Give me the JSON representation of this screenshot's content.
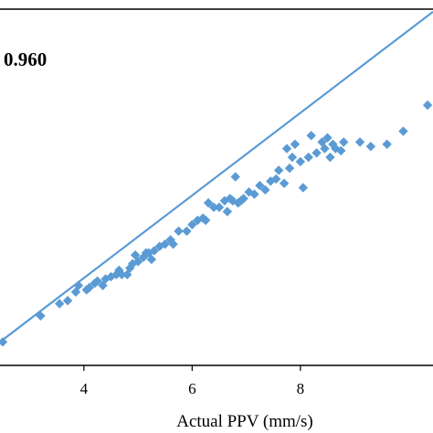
{
  "chart_data": {
    "type": "scatter",
    "title": "",
    "xlabel": "Actual PPV  (mm/s)",
    "ylabel": "",
    "annotation": "0.960",
    "x_ticks": [
      "4",
      "6",
      "8"
    ],
    "xlim": [
      2.45,
      10.45
    ],
    "ylim": [
      2.21,
      10.41
    ],
    "marker_color": "#5B9BD5",
    "line_color": "#5B9BD5",
    "trendline": {
      "x": [
        2.45,
        10.45
      ],
      "y": [
        2.75,
        10.35
      ]
    },
    "series": [
      {
        "points": [
          [
            2.5,
            2.75
          ],
          [
            3.2,
            3.35
          ],
          [
            3.55,
            3.63
          ],
          [
            3.7,
            3.7
          ],
          [
            3.85,
            3.9
          ],
          [
            3.9,
            4.05
          ],
          [
            4.05,
            3.95
          ],
          [
            4.1,
            4.0
          ],
          [
            4.2,
            4.1
          ],
          [
            4.25,
            4.15
          ],
          [
            4.35,
            4.05
          ],
          [
            4.4,
            4.2
          ],
          [
            4.5,
            4.25
          ],
          [
            4.6,
            4.3
          ],
          [
            4.65,
            4.4
          ],
          [
            4.7,
            4.3
          ],
          [
            4.8,
            4.3
          ],
          [
            4.85,
            4.45
          ],
          [
            4.9,
            4.55
          ],
          [
            4.95,
            4.75
          ],
          [
            5.0,
            4.6
          ],
          [
            5.1,
            4.7
          ],
          [
            5.15,
            4.8
          ],
          [
            5.2,
            4.8
          ],
          [
            5.25,
            4.65
          ],
          [
            5.3,
            4.85
          ],
          [
            5.4,
            4.95
          ],
          [
            5.5,
            5.0
          ],
          [
            5.6,
            5.1
          ],
          [
            5.65,
            5.0
          ],
          [
            5.75,
            5.3
          ],
          [
            5.9,
            5.3
          ],
          [
            6.0,
            5.45
          ],
          [
            6.1,
            5.55
          ],
          [
            6.2,
            5.6
          ],
          [
            6.25,
            5.55
          ],
          [
            6.3,
            5.95
          ],
          [
            6.4,
            5.85
          ],
          [
            6.5,
            5.85
          ],
          [
            6.6,
            6.0
          ],
          [
            6.65,
            5.75
          ],
          [
            6.7,
            6.05
          ],
          [
            6.75,
            6.0
          ],
          [
            6.8,
            6.55
          ],
          [
            6.85,
            5.95
          ],
          [
            6.9,
            6.0
          ],
          [
            6.95,
            6.05
          ],
          [
            7.05,
            6.2
          ],
          [
            7.15,
            6.15
          ],
          [
            7.25,
            6.35
          ],
          [
            7.35,
            6.25
          ],
          [
            7.45,
            6.45
          ],
          [
            7.55,
            6.5
          ],
          [
            7.6,
            6.7
          ],
          [
            7.7,
            6.4
          ],
          [
            7.75,
            7.2
          ],
          [
            7.8,
            6.75
          ],
          [
            7.85,
            7.0
          ],
          [
            7.9,
            7.3
          ],
          [
            8.0,
            6.9
          ],
          [
            8.05,
            6.3
          ],
          [
            8.15,
            7.0
          ],
          [
            8.2,
            7.5
          ],
          [
            8.3,
            7.1
          ],
          [
            8.4,
            7.35
          ],
          [
            8.45,
            7.2
          ],
          [
            8.5,
            7.45
          ],
          [
            8.55,
            7.0
          ],
          [
            8.6,
            7.3
          ],
          [
            8.65,
            7.2
          ],
          [
            8.75,
            7.15
          ],
          [
            8.8,
            7.35
          ],
          [
            9.1,
            7.35
          ],
          [
            9.3,
            7.25
          ],
          [
            9.6,
            7.3
          ],
          [
            9.9,
            7.6
          ],
          [
            10.35,
            8.2
          ]
        ]
      }
    ]
  }
}
